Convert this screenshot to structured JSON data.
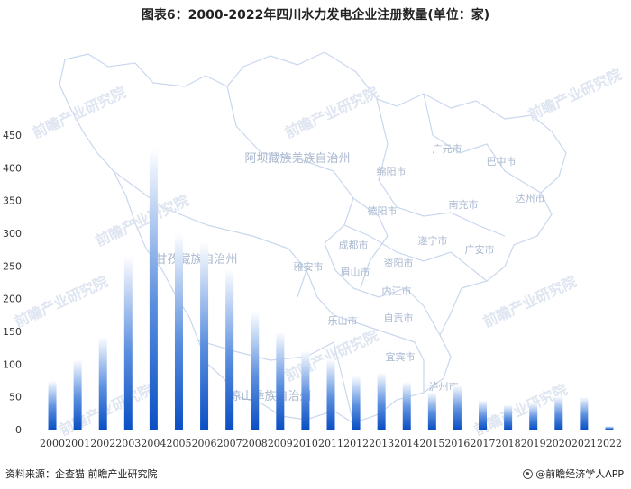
{
  "title": "图表6：2000-2022年四川水力发电企业注册数量(单位：家)",
  "source": "资料来源：企查猫 前瞻产业研究院",
  "brand": "@前瞻经济学人APP",
  "map_labels": [
    "阿坝藏族羌族自治州",
    "绵阳市",
    "广元市",
    "巴中市",
    "达州市",
    "南充市",
    "德阳市",
    "遂宁市",
    "广安市",
    "成都市",
    "资阳市",
    "雅安市",
    "眉山市",
    "内江市",
    "乐山市",
    "自贡市",
    "宜宾市",
    "泸州市",
    "甘孜藏族自治州",
    "凉山彝族自治州"
  ],
  "watermark_text": "前瞻产业研究院",
  "chart_data": {
    "type": "bar",
    "title": "图表6：2000-2022年四川水力发电企业注册数量(单位：家)",
    "xlabel": "",
    "ylabel": "",
    "categories": [
      "2000",
      "2001",
      "2002",
      "2003",
      "2004",
      "2005",
      "2006",
      "2007",
      "2008",
      "2009",
      "2010",
      "2011",
      "2012",
      "2013",
      "2014",
      "2015",
      "2016",
      "2017",
      "2018",
      "2019",
      "2020",
      "2021",
      "2022"
    ],
    "values": [
      75,
      107,
      142,
      265,
      430,
      300,
      287,
      245,
      180,
      150,
      121,
      108,
      82,
      87,
      73,
      57,
      68,
      45,
      38,
      41,
      51,
      50,
      5
    ],
    "ylim": [
      0,
      450
    ],
    "yticks": [
      0,
      50,
      100,
      150,
      200,
      250,
      300,
      350,
      400,
      450
    ],
    "grid": false,
    "bar_gradient": [
      "#0a4fc4",
      "#ffffff"
    ]
  }
}
